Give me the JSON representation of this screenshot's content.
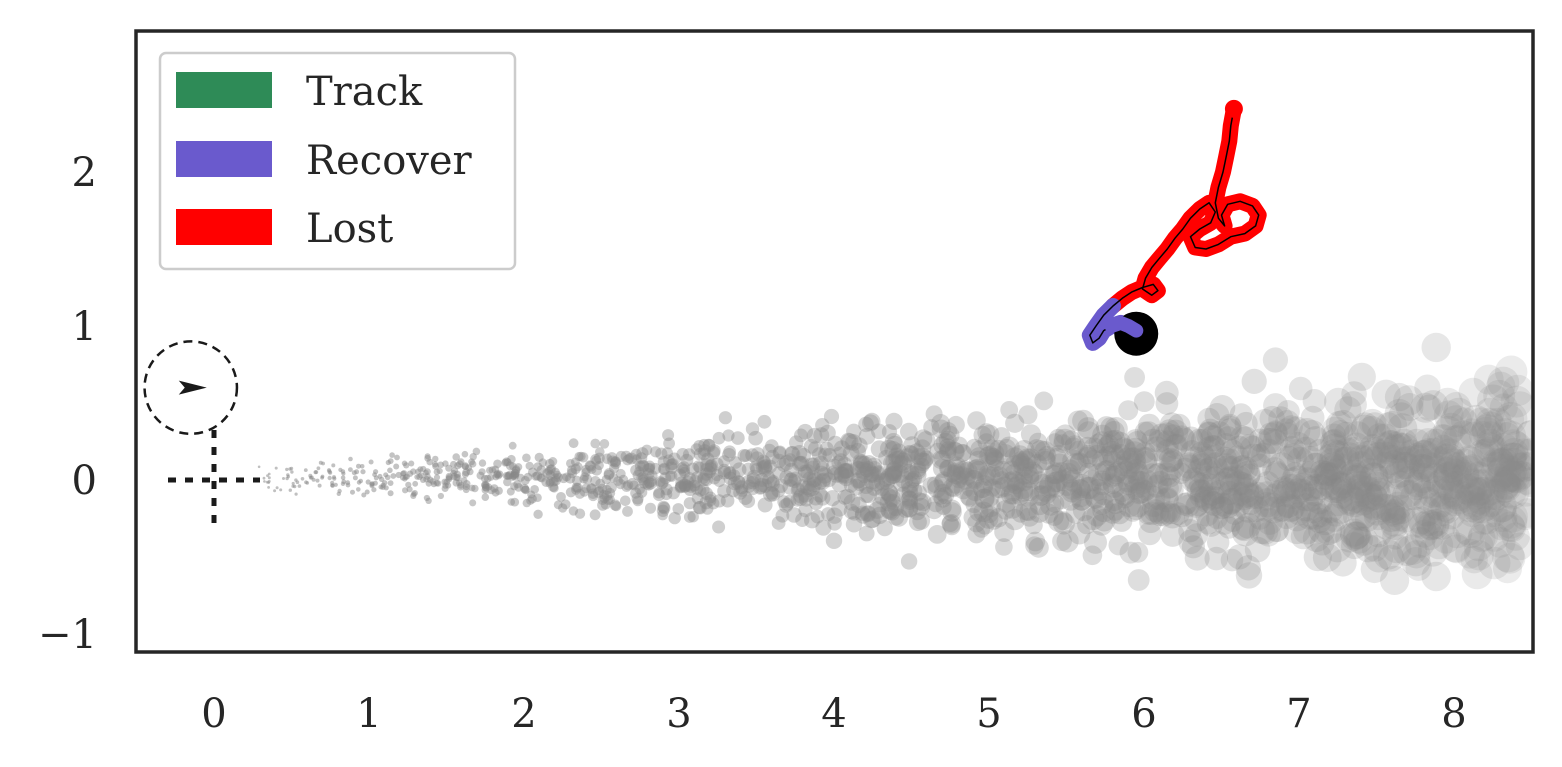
{
  "chart_data": {
    "type": "scatter",
    "title": "",
    "xlabel": "",
    "ylabel": "",
    "xlim": [
      -0.5,
      8.5
    ],
    "ylim": [
      -1.12,
      2.9
    ],
    "x_ticks": [
      0,
      1,
      2,
      3,
      4,
      5,
      6,
      7,
      8
    ],
    "y_ticks": [
      -1,
      0,
      1,
      2
    ],
    "x_tick_labels": [
      "0",
      "1",
      "2",
      "3",
      "4",
      "5",
      "6",
      "7",
      "8"
    ],
    "y_tick_labels": [
      "−1",
      "0",
      "1",
      "2"
    ],
    "grid": false,
    "legend": {
      "position": "top-left",
      "entries": [
        {
          "label": "Track",
          "color": "#2e8b57"
        },
        {
          "label": "Recover",
          "color": "#6a5acd"
        },
        {
          "label": "Lost",
          "color": "#ff0000"
        }
      ]
    },
    "target_ring": {
      "center": [
        -0.15,
        0.6
      ],
      "radius": 0.3,
      "heading": "east"
    },
    "origin_marker": [
      0,
      0
    ],
    "end_marker": [
      5.95,
      0.95
    ],
    "particle_cloud": {
      "color": "#888888",
      "x_range": [
        0.25,
        8.5
      ],
      "y_center": 0.02,
      "spread_growth": "increasing with x"
    },
    "trajectory": {
      "recover": [
        [
          5.95,
          0.97
        ],
        [
          5.9,
          1.0
        ],
        [
          5.85,
          1.02
        ],
        [
          5.79,
          1.0
        ],
        [
          5.74,
          0.97
        ],
        [
          5.71,
          0.92
        ],
        [
          5.67,
          0.89
        ],
        [
          5.65,
          0.94
        ],
        [
          5.69,
          1.0
        ],
        [
          5.74,
          1.07
        ],
        [
          5.8,
          1.13
        ]
      ],
      "lost": [
        [
          5.8,
          1.13
        ],
        [
          5.86,
          1.18
        ],
        [
          5.92,
          1.22
        ],
        [
          5.99,
          1.25
        ],
        [
          6.06,
          1.27
        ],
        [
          6.09,
          1.23
        ],
        [
          6.05,
          1.2
        ],
        [
          5.99,
          1.24
        ],
        [
          6.01,
          1.31
        ],
        [
          6.05,
          1.38
        ],
        [
          6.1,
          1.44
        ],
        [
          6.15,
          1.5
        ],
        [
          6.2,
          1.57
        ],
        [
          6.25,
          1.63
        ],
        [
          6.3,
          1.7
        ],
        [
          6.36,
          1.76
        ],
        [
          6.42,
          1.8
        ],
        [
          6.46,
          1.74
        ],
        [
          6.43,
          1.67
        ],
        [
          6.36,
          1.63
        ],
        [
          6.3,
          1.58
        ],
        [
          6.33,
          1.51
        ],
        [
          6.4,
          1.5
        ],
        [
          6.48,
          1.53
        ],
        [
          6.56,
          1.58
        ],
        [
          6.65,
          1.6
        ],
        [
          6.72,
          1.65
        ],
        [
          6.74,
          1.72
        ],
        [
          6.7,
          1.78
        ],
        [
          6.62,
          1.81
        ],
        [
          6.54,
          1.79
        ],
        [
          6.5,
          1.72
        ],
        [
          6.52,
          1.65
        ],
        [
          6.48,
          1.7
        ],
        [
          6.46,
          1.8
        ],
        [
          6.48,
          1.9
        ],
        [
          6.51,
          2.0
        ],
        [
          6.53,
          2.1
        ],
        [
          6.55,
          2.2
        ],
        [
          6.56,
          2.3
        ],
        [
          6.58,
          2.41
        ]
      ]
    }
  }
}
